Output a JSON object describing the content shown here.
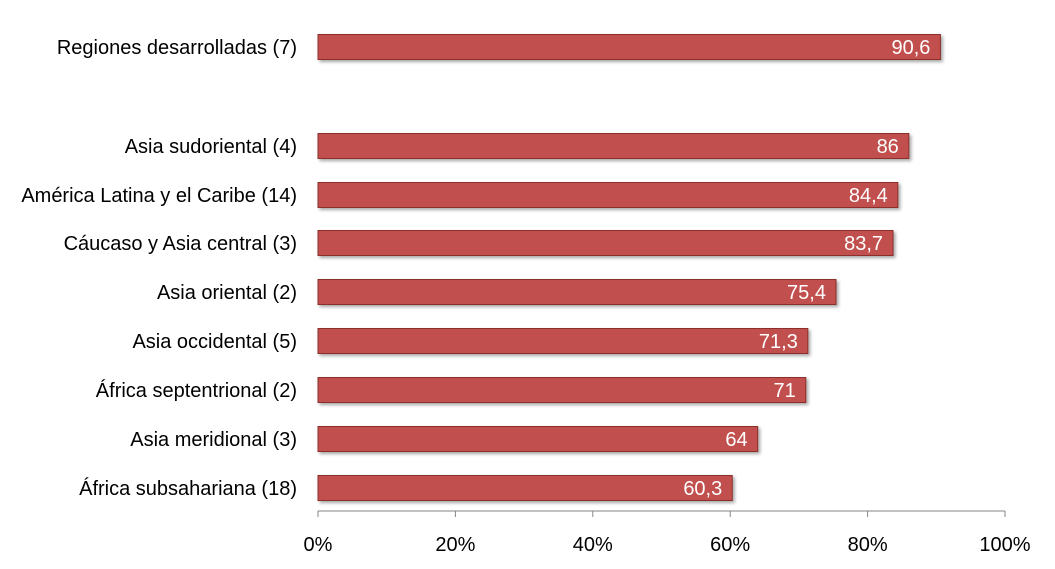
{
  "chart_data": {
    "type": "bar",
    "orientation": "horizontal",
    "categories": [
      "Regiones desarrolladas (7)",
      "Asia sudoriental (4)",
      "América Latina y el Caribe (14)",
      "Cáucaso y Asia central (3)",
      "Asia oriental (2)",
      "Asia occidental (5)",
      "África septentrional (2)",
      "Asia meridional (3)",
      "África subsahariana (18)"
    ],
    "values": [
      90.6,
      86,
      84.4,
      83.7,
      75.4,
      71.3,
      71,
      64,
      60.3
    ],
    "value_labels": [
      "90,6",
      "86",
      "84,4",
      "83,7",
      "75,4",
      "71,3",
      "71",
      "64",
      "60,3"
    ],
    "xlim": [
      0,
      100
    ],
    "x_ticks": [
      "0%",
      "20%",
      "40%",
      "60%",
      "80%",
      "100%"
    ],
    "grid": false,
    "legend": "none",
    "colors": {
      "bar": "#c0504d",
      "bar_border": "#8c2f2c",
      "axis": "#868686"
    }
  }
}
